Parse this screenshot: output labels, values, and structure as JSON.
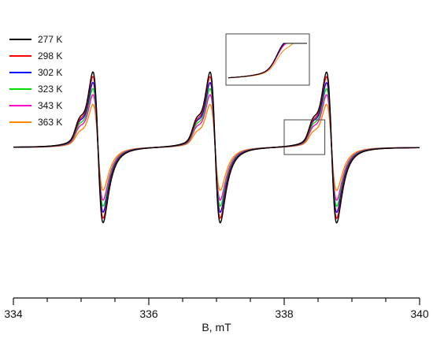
{
  "chart_data": {
    "type": "line",
    "title": "",
    "xlabel": "B, mT",
    "ylabel": "",
    "xlim": [
      334,
      340
    ],
    "ylim": [
      -1.0,
      1.0
    ],
    "x_ticks": [
      "334",
      "336",
      "338",
      "340"
    ],
    "grid": false,
    "legend_position": "top-left",
    "series": [
      {
        "name": "277 K",
        "color": "#000000",
        "amp": 1.0,
        "shoulder": 0.1
      },
      {
        "name": "298 K",
        "color": "#ff0000",
        "amp": 0.94,
        "shoulder": 0.09
      },
      {
        "name": "302 K",
        "color": "#0000ff",
        "amp": 0.86,
        "shoulder": 0.09
      },
      {
        "name": "323 K",
        "color": "#00dd00",
        "amp": 0.78,
        "shoulder": 0.08
      },
      {
        "name": "343 K",
        "color": "#ff00cc",
        "amp": 0.7,
        "shoulder": 0.07
      },
      {
        "name": "363 K",
        "color": "#ff8800",
        "amp": 0.57,
        "shoulder": 0.05
      }
    ],
    "lines": [
      {
        "center": 335.25,
        "width": 0.075
      },
      {
        "center": 336.98,
        "width": 0.075
      },
      {
        "center": 338.7,
        "width": 0.075
      }
    ],
    "inset": {
      "zoom_region_x": [
        338.0,
        338.6
      ],
      "description": "magnified view of rising shoulder before third line"
    }
  }
}
